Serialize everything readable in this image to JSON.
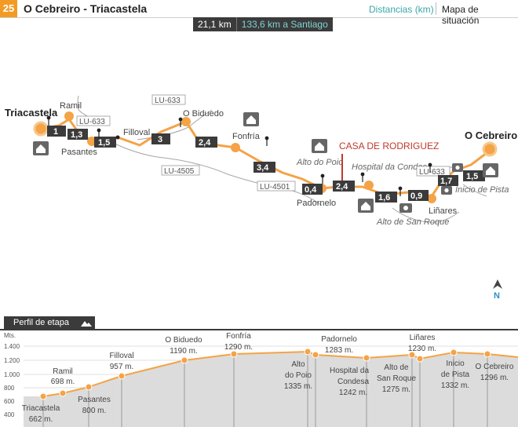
{
  "header": {
    "stage_number": "25",
    "title": "O Cebreiro - Triacastela",
    "units_label": "Distancias (km)",
    "map_link": "Mapa de situación"
  },
  "distance": {
    "stage": "21,1 km",
    "to_santiago": "133,6 km a Santiago"
  },
  "map": {
    "places": {
      "triacastela": "Triacastela",
      "ramil": "Ramil",
      "pasantes": "Pasantes",
      "filloval": "Filloval",
      "o_biduedo": "O Biduedo",
      "fonfria": "Fonfría",
      "alto_do_poio": "Alto do Poio",
      "padornelo": "Padornelo",
      "hospital_condesa": "Hospital da Condesa",
      "alto_san_roque": "Alto de San Roque",
      "linares": "Liñares",
      "inicio_pista": "Inicio de Pista",
      "o_cebreiro": "O Cebreiro",
      "casa": "CASA DE RODRIGUEZ"
    },
    "roads": {
      "lu633_a": "LU-633",
      "lu633_b": "LU-633",
      "lu633_c": "LU-633",
      "lu4505": "LU-4505",
      "lu4501": "LU-4501"
    },
    "segments": [
      "1",
      "1,3",
      "1,5",
      "3",
      "2,4",
      "3,4",
      "0,4",
      "2,4",
      "1,6",
      "0,9",
      "1,7",
      "1,5"
    ],
    "north": "N",
    "colors": {
      "route": "#f4a347",
      "node": "#f4a347",
      "segment_bg": "#3b3b3b",
      "highlight": "#c0392b",
      "road": "#a7a7a7"
    }
  },
  "profile": {
    "tab_label": "Perfil de etapa",
    "y_axis": {
      "unit": "Mts.",
      "ticks": [
        "1.400",
        "1.200",
        "1.000",
        "800",
        "600",
        "400"
      ]
    },
    "points": [
      {
        "name": "Triacastela",
        "elev": "662 m."
      },
      {
        "name": "Ramil",
        "elev": "698 m."
      },
      {
        "name": "Pasantes",
        "elev": "800 m."
      },
      {
        "name": "Filloval",
        "elev": "957 m."
      },
      {
        "name": "O Biduedo",
        "elev": "1190 m."
      },
      {
        "name": "Fonfría",
        "elev": "1290 m."
      },
      {
        "name": "Alto do Poio",
        "elev": "1335 m."
      },
      {
        "name": "Padornelo",
        "elev": "1283 m."
      },
      {
        "name": "Hospital da Condesa",
        "elev": "1242 m."
      },
      {
        "name": "Alto de San Roque",
        "elev": "1275 m."
      },
      {
        "name": "Liñares",
        "elev": "1230 m."
      },
      {
        "name": "Inicio de Pista",
        "elev": "1332 m."
      },
      {
        "name": "O Cebreiro",
        "elev": "1296 m."
      }
    ],
    "text": {
      "triacastela": "Triacastela",
      "triacastela_elev": "662 m.",
      "ramil": "Ramil",
      "ramil_elev": "698 m.",
      "pasantes": "Pasantes",
      "pasantes_elev": "800 m.",
      "filloval": "Filloval",
      "filloval_elev": "957 m.",
      "biduedo": "O Biduedo",
      "biduedo_elev": "1190 m.",
      "fonfria": "Fonfría",
      "fonfria_elev": "1290 m.",
      "poio_1": "Alto",
      "poio_2": "do Poio",
      "poio_elev": "1335 m.",
      "padornelo": "Padornelo",
      "padornelo_elev": "1283 m.",
      "hospital_1": "Hospital da",
      "hospital_2": "Condesa",
      "hospital_elev": "1242 m.",
      "roque_1": "Alto de",
      "roque_2": "San Roque",
      "roque_elev": "1275 m.",
      "linares": "Liñares",
      "linares_elev": "1230 m.",
      "pista_1": "Inicio",
      "pista_2": "de Pista",
      "pista_elev": "1332 m.",
      "cebreiro": "O Cebreiro",
      "cebreiro_elev": "1296 m."
    }
  }
}
